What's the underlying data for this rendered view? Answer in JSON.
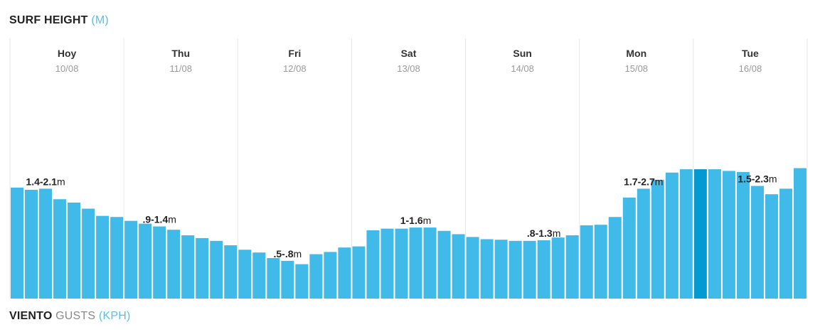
{
  "surf_section": {
    "title": "SURF HEIGHT",
    "unit": "(M)"
  },
  "wind_section": {
    "title": "VIENTO",
    "subtitle": "GUSTS",
    "unit": "(KPH)"
  },
  "colors": {
    "bar": "#40bae8",
    "bar_highlight": "#0399d1",
    "separator": "#e6e6e6"
  },
  "chart_data": {
    "type": "bar",
    "days": [
      {
        "name": "Hoy",
        "date": "10/08",
        "range_label": "1.4-2.1",
        "unit": "m"
      },
      {
        "name": "Thu",
        "date": "11/08",
        "range_label": ".9-1.4",
        "unit": "m"
      },
      {
        "name": "Fri",
        "date": "12/08",
        "range_label": ".5-.8",
        "unit": "m"
      },
      {
        "name": "Sat",
        "date": "13/08",
        "range_label": "1-1.6",
        "unit": "m"
      },
      {
        "name": "Sun",
        "date": "14/08",
        "range_label": ".8-1.3",
        "unit": "m"
      },
      {
        "name": "Mon",
        "date": "15/08",
        "range_label": "1.7-2.7",
        "unit": "m"
      },
      {
        "name": "Tue",
        "date": "16/08",
        "range_label": "1.5-2.3",
        "unit": "m"
      }
    ],
    "bars_per_day": 8,
    "values": [
      2.0,
      1.96,
      1.98,
      1.79,
      1.73,
      1.62,
      1.49,
      1.47,
      1.4,
      1.35,
      1.3,
      1.24,
      1.14,
      1.09,
      1.04,
      0.96,
      0.88,
      0.83,
      0.73,
      0.68,
      0.62,
      0.8,
      0.84,
      0.92,
      0.94,
      1.23,
      1.26,
      1.26,
      1.28,
      1.28,
      1.22,
      1.16,
      1.11,
      1.07,
      1.06,
      1.04,
      1.04,
      1.05,
      1.1,
      1.14,
      1.32,
      1.33,
      1.47,
      1.82,
      1.98,
      2.14,
      2.27,
      2.33,
      2.33,
      2.33,
      2.3,
      2.28,
      2.03,
      1.88,
      1.98,
      2.35
    ],
    "highlight_index": 48,
    "label_positions": [
      2,
      10,
      19,
      28,
      37,
      44,
      52
    ],
    "ylim": [
      0,
      5.2
    ]
  }
}
